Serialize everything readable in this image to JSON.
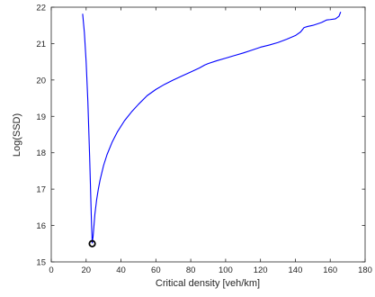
{
  "chart_data": {
    "type": "line",
    "title": "",
    "xlabel": "Critical density [veh/km]",
    "ylabel": "Log(SSD)",
    "xlim": [
      0,
      180
    ],
    "ylim": [
      15,
      22
    ],
    "xticks": [
      0,
      20,
      40,
      60,
      80,
      100,
      120,
      140,
      160,
      180
    ],
    "yticks": [
      15,
      16,
      17,
      18,
      19,
      20,
      21,
      22
    ],
    "grid": false,
    "legend": "none",
    "series": [
      {
        "color": "#0000ff",
        "x": [
          18,
          19,
          20,
          21,
          22,
          23,
          23.5,
          24,
          25,
          26,
          27,
          28,
          30,
          32,
          35,
          38,
          42,
          46,
          50,
          55,
          60,
          65,
          70,
          75,
          80,
          85,
          88,
          90,
          95,
          100,
          105,
          110,
          115,
          120,
          125,
          130,
          135,
          140,
          143,
          145,
          147,
          150,
          155,
          158,
          160,
          163,
          165,
          166
        ],
        "y": [
          21.82,
          21.3,
          20.5,
          19.4,
          17.9,
          16.2,
          15.52,
          15.7,
          16.3,
          16.7,
          17.0,
          17.25,
          17.65,
          17.95,
          18.3,
          18.58,
          18.88,
          19.12,
          19.33,
          19.57,
          19.74,
          19.88,
          20.0,
          20.11,
          20.22,
          20.33,
          20.41,
          20.45,
          20.53,
          20.6,
          20.67,
          20.74,
          20.82,
          20.9,
          20.96,
          21.03,
          21.12,
          21.22,
          21.32,
          21.44,
          21.47,
          21.5,
          21.58,
          21.65,
          21.66,
          21.68,
          21.75,
          21.87
        ]
      }
    ],
    "marker": {
      "x": 23.5,
      "y": 15.5,
      "shape": "circle",
      "color": "#000000"
    }
  }
}
